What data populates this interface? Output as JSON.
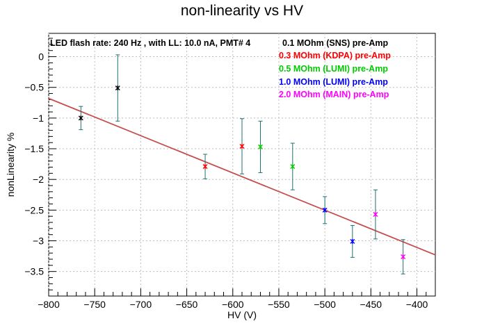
{
  "chart_data": {
    "type": "scatter",
    "title": "non-linearity vs HV",
    "xlabel": "HV (V)",
    "ylabel": "nonLinearity %",
    "xlim": [
      -800,
      -380
    ],
    "ylim": [
      -3.9,
      0.38
    ],
    "xticks": [
      -800,
      -750,
      -700,
      -650,
      -600,
      -550,
      -500,
      -450,
      -400
    ],
    "xtick_labels": [
      "−800",
      "−750",
      "−700",
      "−650",
      "−600",
      "−550",
      "−500",
      "−450",
      "−400"
    ],
    "yticks": [
      0,
      -0.5,
      -1,
      -1.5,
      -2,
      -2.5,
      -3,
      -3.5
    ],
    "ytick_labels": [
      "0",
      "−0.5",
      "−1",
      "−1.5",
      "−2",
      "−2.5",
      "−3",
      "−3.5"
    ],
    "grid": true,
    "legend_placement": "top-right",
    "annotation": "LED flash rate: 240 Hz , with LL: 10.0 nA, PMT# 4",
    "error_bar_color": "#1f6f6f",
    "fit_line": {
      "color": "#c44e4e",
      "x": [
        -800,
        -380
      ],
      "y": [
        -0.68,
        -3.23
      ]
    },
    "series": [
      {
        "name": "0.1 MOhm (SNS) pre-Amp",
        "color": "#000000",
        "x": [
          -765,
          -725
        ],
        "y": [
          -1.0,
          -0.51
        ],
        "yerr": [
          0.19,
          0.54
        ]
      },
      {
        "name": "0.3 MOhm (KDPA) pre-Amp",
        "color": "#ff0000",
        "x": [
          -630,
          -590
        ],
        "y": [
          -1.79,
          -1.46
        ],
        "yerr": [
          0.2,
          0.45
        ]
      },
      {
        "name": "0.5 MOhm (LUMI) pre-Amp",
        "color": "#00cc00",
        "x": [
          -570,
          -535
        ],
        "y": [
          -1.47,
          -1.79
        ],
        "yerr": [
          0.42,
          0.38
        ]
      },
      {
        "name": "1.0 MOhm (LUMI) pre-Amp",
        "color": "#0000ff",
        "x": [
          -500,
          -470
        ],
        "y": [
          -2.5,
          -3.01
        ],
        "yerr": [
          0.22,
          0.26
        ]
      },
      {
        "name": "2.0 MOhm (MAIN) pre-Amp",
        "color": "#ff00ff",
        "x": [
          -445,
          -415
        ],
        "y": [
          -2.57,
          -3.26
        ],
        "yerr": [
          0.4,
          0.28
        ]
      }
    ]
  }
}
